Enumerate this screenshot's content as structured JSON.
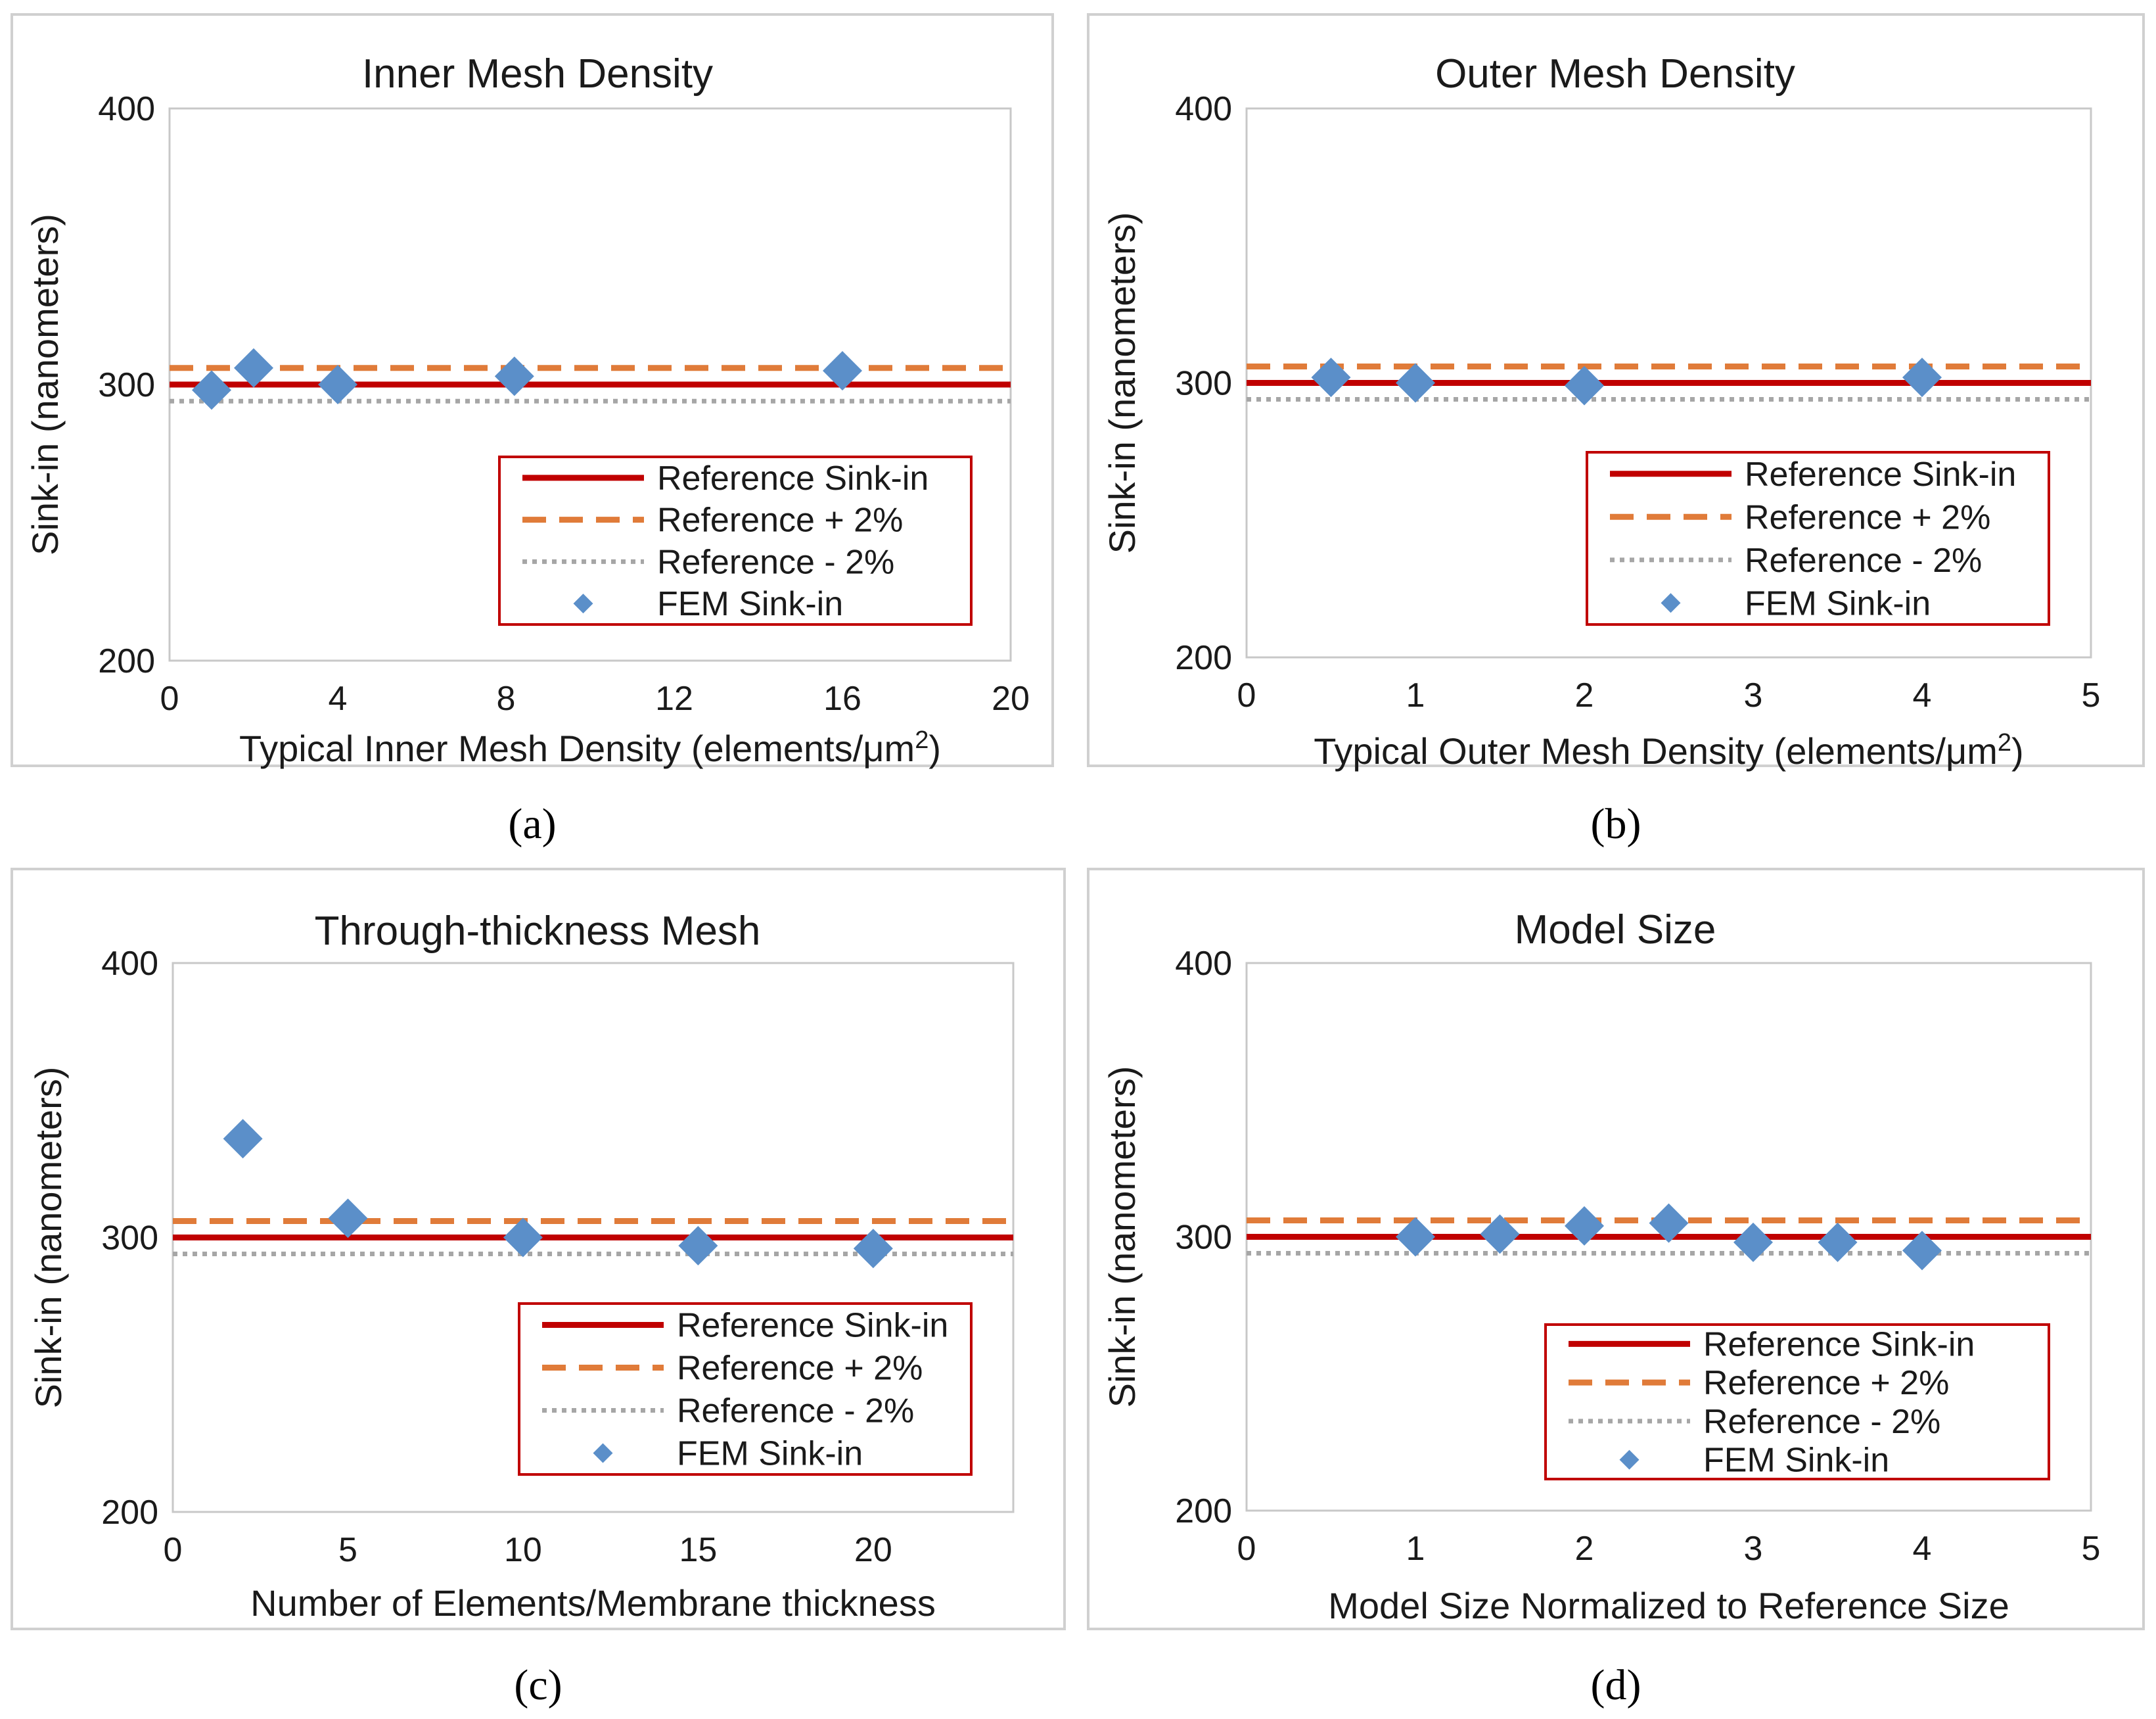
{
  "figure_caption_labels": [
    "(a)",
    "(b)",
    "(c)",
    "(d)"
  ],
  "colors": {
    "reference": "#c00000",
    "reference_plus": "#e07b39",
    "reference_minus": "#a6a6a6",
    "fem_marker": "#5b8fc9",
    "legend_border": "#c00000",
    "frame": "#d0d0d0",
    "plot_border": "#c8c8c8"
  },
  "chart_data": [
    {
      "type": "scatter",
      "panel": "a",
      "caption_letter": "a",
      "title": "Inner Mesh Density",
      "xlabel": "Typical Inner Mesh Density (elements/μm",
      "xlabel_superscript": "2",
      "xlabel_suffix": ")",
      "ylabel": "Sink-in (nanometers)",
      "xlim": [
        0,
        20
      ],
      "ylim": [
        200,
        400
      ],
      "xticks": [
        0,
        4,
        8,
        12,
        16,
        20
      ],
      "xtick_labels": [
        "0",
        "4",
        "8",
        "12",
        "16",
        "20"
      ],
      "yticks": [
        200,
        300,
        400
      ],
      "ytick_labels": [
        "200",
        "300",
        "400"
      ],
      "grid": false,
      "legend": [
        "Reference Sink-in",
        "Reference + 2%",
        "Reference - 2%",
        "FEM Sink-in"
      ],
      "legend_placement": "bottom-right",
      "reference": 300,
      "reference_plus": 306,
      "reference_minus": 294,
      "points": [
        {
          "x": 1,
          "y": 298
        },
        {
          "x": 2,
          "y": 306
        },
        {
          "x": 4,
          "y": 300
        },
        {
          "x": 8.2,
          "y": 303
        },
        {
          "x": 16,
          "y": 305
        }
      ]
    },
    {
      "type": "scatter",
      "panel": "b",
      "caption_letter": "b",
      "title": "Outer Mesh Density",
      "xlabel": "Typical Outer Mesh Density (elements/μm",
      "xlabel_superscript": "2",
      "xlabel_suffix": ")",
      "ylabel": "Sink-in (nanometers)",
      "xlim": [
        0,
        5
      ],
      "ylim": [
        200,
        400
      ],
      "xticks": [
        0,
        1,
        2,
        3,
        4,
        5
      ],
      "xtick_labels": [
        "0",
        "1",
        "2",
        "3",
        "4",
        "5"
      ],
      "yticks": [
        200,
        300,
        400
      ],
      "ytick_labels": [
        "200",
        "300",
        "400"
      ],
      "grid": false,
      "legend": [
        "Reference Sink-in",
        "Reference + 2%",
        "Reference - 2%",
        "FEM Sink-in"
      ],
      "legend_placement": "bottom-right",
      "reference": 300,
      "reference_plus": 306,
      "reference_minus": 294,
      "points": [
        {
          "x": 0.5,
          "y": 302
        },
        {
          "x": 1,
          "y": 300
        },
        {
          "x": 2,
          "y": 299
        },
        {
          "x": 4,
          "y": 302
        }
      ]
    },
    {
      "type": "scatter",
      "panel": "c",
      "caption_letter": "c",
      "title": "Through-thickness Mesh",
      "xlabel": "Number of Elements/Membrane thickness",
      "xlabel_superscript": "",
      "xlabel_suffix": "",
      "ylabel": "Sink-in (nanometers)",
      "xlim": [
        0,
        24
      ],
      "ylim": [
        200,
        400
      ],
      "xticks": [
        0,
        5,
        10,
        15,
        20
      ],
      "xtick_labels": [
        "0",
        "5",
        "10",
        "15",
        "20"
      ],
      "yticks": [
        200,
        300,
        400
      ],
      "ytick_labels": [
        "200",
        "300",
        "400"
      ],
      "grid": false,
      "legend": [
        "Reference Sink-in",
        "Reference + 2%",
        "Reference - 2%",
        "FEM Sink-in"
      ],
      "legend_placement": "bottom-right",
      "reference": 300,
      "reference_plus": 306,
      "reference_minus": 294,
      "points": [
        {
          "x": 2,
          "y": 336
        },
        {
          "x": 5,
          "y": 307
        },
        {
          "x": 10,
          "y": 300
        },
        {
          "x": 15,
          "y": 297
        },
        {
          "x": 20,
          "y": 296
        }
      ]
    },
    {
      "type": "scatter",
      "panel": "d",
      "caption_letter": "d",
      "title": "Model Size",
      "xlabel": "Model Size Normalized to Reference Size",
      "xlabel_superscript": "",
      "xlabel_suffix": "",
      "ylabel": "Sink-in (nanometers)",
      "xlim": [
        0,
        5
      ],
      "ylim": [
        200,
        400
      ],
      "xticks": [
        0,
        1,
        2,
        3,
        4,
        5
      ],
      "xtick_labels": [
        "0",
        "1",
        "2",
        "3",
        "4",
        "5"
      ],
      "yticks": [
        200,
        300,
        400
      ],
      "ytick_labels": [
        "200",
        "300",
        "400"
      ],
      "grid": false,
      "legend": [
        "Reference Sink-in",
        "Reference + 2%",
        "Reference - 2%",
        "FEM Sink-in"
      ],
      "legend_placement": "bottom-right",
      "reference": 300,
      "reference_plus": 306,
      "reference_minus": 294,
      "points": [
        {
          "x": 1,
          "y": 300
        },
        {
          "x": 1.5,
          "y": 301
        },
        {
          "x": 2,
          "y": 304
        },
        {
          "x": 2.5,
          "y": 305
        },
        {
          "x": 3,
          "y": 298
        },
        {
          "x": 3.5,
          "y": 298
        },
        {
          "x": 4,
          "y": 295
        }
      ]
    }
  ]
}
